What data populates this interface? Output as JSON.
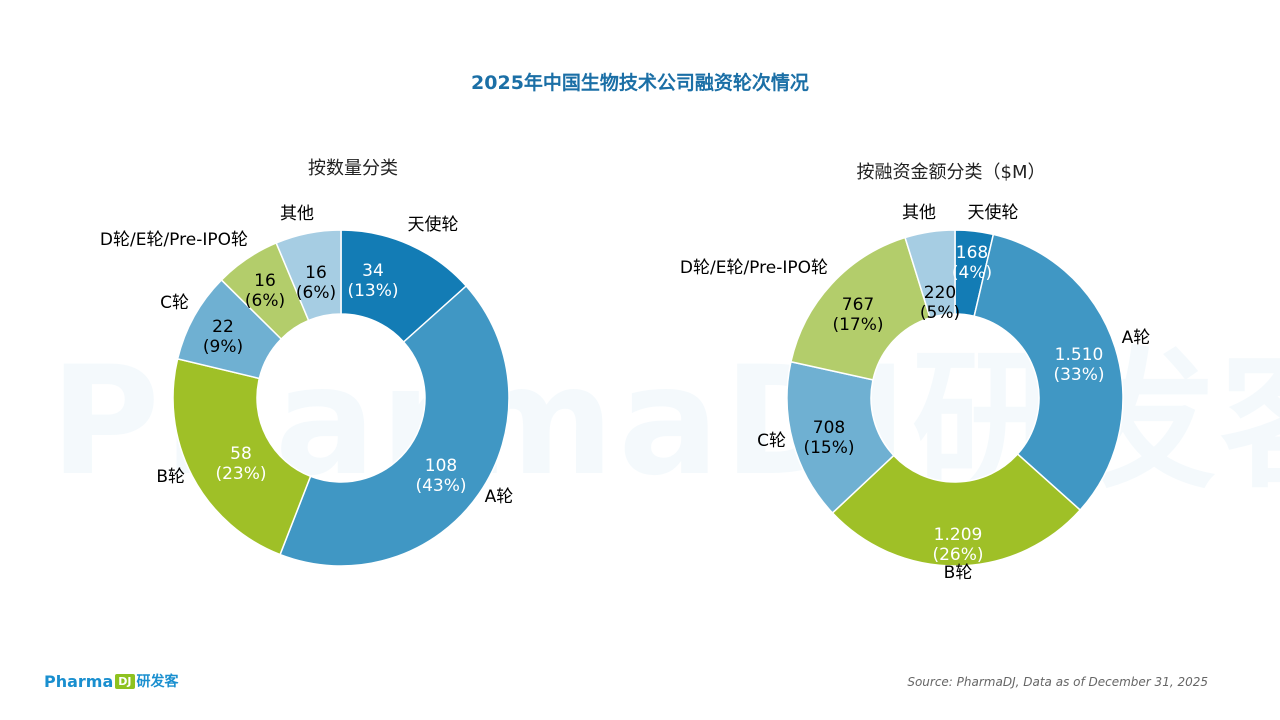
{
  "title": "2025年中国生物技术公司融资轮次情况",
  "footer": {
    "logo_text": "Pharma",
    "logo_badge": "DJ",
    "logo_cn": "研发客",
    "source": "Source: PharmaDJ, Data as of December 31, 2025"
  },
  "watermark": "PharmaDJ研发客",
  "colors": {
    "angel": "#137cb5",
    "A": "#4097c4",
    "B": "#9fc027",
    "C": "#6fb0d2",
    "D": "#b3cd6b",
    "other": "#a6cde3",
    "title": "#1b6fa6"
  },
  "chart_data": [
    {
      "type": "pie",
      "title": "按数量分类",
      "slices": [
        {
          "label": "天使轮",
          "value": 34,
          "value_text": "34",
          "pct_text": "(13%)"
        },
        {
          "label": "A轮",
          "value": 108,
          "value_text": "108",
          "pct_text": "(43%)"
        },
        {
          "label": "B轮",
          "value": 58,
          "value_text": "58",
          "pct_text": "(23%)"
        },
        {
          "label": "C轮",
          "value": 22,
          "value_text": "22",
          "pct_text": "(9%)"
        },
        {
          "label": "D轮/E轮/Pre-IPO轮",
          "value": 16,
          "value_text": "16",
          "pct_text": "(6%)"
        },
        {
          "label": "其他",
          "value": 16,
          "value_text": "16",
          "pct_text": "(6%)"
        }
      ]
    },
    {
      "type": "pie",
      "title": "按融资金额分类（$M）",
      "slices": [
        {
          "label": "天使轮",
          "value": 168,
          "value_text": "168",
          "pct_text": "(4%)"
        },
        {
          "label": "A轮",
          "value": 1510,
          "value_text": "1.510",
          "pct_text": "(33%)"
        },
        {
          "label": "B轮",
          "value": 1209,
          "value_text": "1.209",
          "pct_text": "(26%)"
        },
        {
          "label": "C轮",
          "value": 708,
          "value_text": "708",
          "pct_text": "(15%)"
        },
        {
          "label": "D轮/E轮/Pre-IPO轮",
          "value": 767,
          "value_text": "767",
          "pct_text": "(17%)"
        },
        {
          "label": "其他",
          "value": 220,
          "value_text": "220",
          "pct_text": "(5%)"
        }
      ]
    }
  ]
}
